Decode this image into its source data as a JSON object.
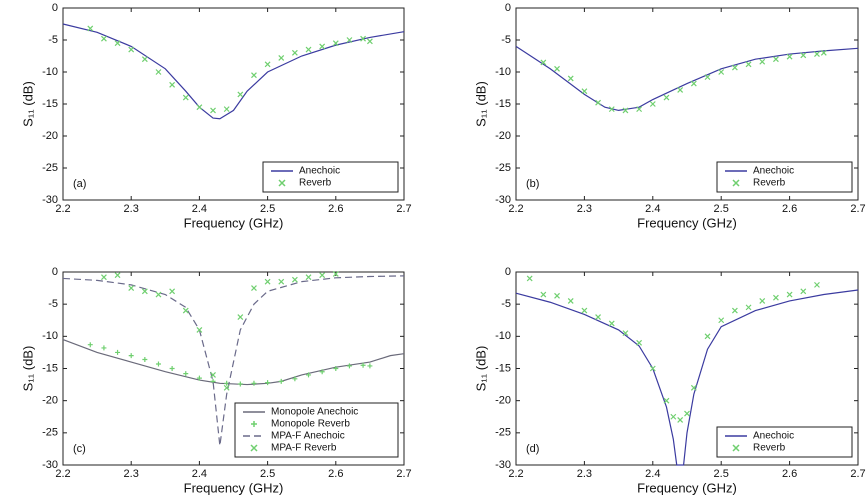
{
  "chart_data": [
    {
      "type": "line",
      "xlabel": "Frequency (GHz)",
      "ylabel": "S₁₁ (dB)",
      "annotation": "(a)",
      "xlim": [
        2.2,
        2.7
      ],
      "ylim": [
        -30,
        0
      ],
      "xticks": [
        2.2,
        2.3,
        2.4,
        2.5,
        2.6,
        2.7
      ],
      "yticks": [
        0,
        -5,
        -10,
        -15,
        -20,
        -25,
        -30
      ],
      "legend": "lower right",
      "series": [
        {
          "name": "Anechoic",
          "color": "#3b3ba0",
          "style": "solid",
          "x": [
            2.2,
            2.25,
            2.3,
            2.35,
            2.38,
            2.4,
            2.42,
            2.43,
            2.45,
            2.47,
            2.5,
            2.55,
            2.6,
            2.65,
            2.7
          ],
          "values": [
            -2.5,
            -3.8,
            -6,
            -9.5,
            -13,
            -15.5,
            -17.2,
            -17.3,
            -16,
            -13,
            -10,
            -7.5,
            -5.8,
            -4.6,
            -3.7
          ]
        },
        {
          "name": "Reverb",
          "color": "#6fcf6f",
          "style": "none",
          "marker": "x",
          "x": [
            2.24,
            2.26,
            2.28,
            2.3,
            2.32,
            2.34,
            2.36,
            2.38,
            2.4,
            2.42,
            2.44,
            2.46,
            2.48,
            2.5,
            2.52,
            2.54,
            2.56,
            2.58,
            2.6,
            2.62,
            2.64,
            2.65
          ],
          "values": [
            -3.2,
            -4.8,
            -5.5,
            -6.5,
            -8,
            -10,
            -12,
            -14,
            -15.5,
            -16,
            -15.8,
            -13.5,
            -10.5,
            -8.8,
            -7.8,
            -7,
            -6.5,
            -6,
            -5.5,
            -5,
            -4.8,
            -5.2
          ]
        }
      ]
    },
    {
      "type": "line",
      "xlabel": "Frequency (GHz)",
      "ylabel": "S₁₁ (dB)",
      "annotation": "(b)",
      "xlim": [
        2.2,
        2.7
      ],
      "ylim": [
        -30,
        0
      ],
      "xticks": [
        2.2,
        2.3,
        2.4,
        2.5,
        2.6,
        2.7
      ],
      "yticks": [
        0,
        -5,
        -10,
        -15,
        -20,
        -25,
        -30
      ],
      "legend": "lower right",
      "series": [
        {
          "name": "Anechoic",
          "color": "#3b3ba0",
          "style": "solid",
          "x": [
            2.2,
            2.25,
            2.3,
            2.33,
            2.35,
            2.38,
            2.4,
            2.45,
            2.5,
            2.55,
            2.6,
            2.65,
            2.7
          ],
          "values": [
            -6,
            -9.5,
            -13.5,
            -15.5,
            -16,
            -15.5,
            -14.3,
            -11.8,
            -9.5,
            -8,
            -7.2,
            -6.7,
            -6.3
          ]
        },
        {
          "name": "Reverb",
          "color": "#6fcf6f",
          "style": "none",
          "marker": "x",
          "x": [
            2.24,
            2.26,
            2.28,
            2.3,
            2.32,
            2.34,
            2.36,
            2.38,
            2.4,
            2.42,
            2.44,
            2.46,
            2.48,
            2.5,
            2.52,
            2.54,
            2.56,
            2.58,
            2.6,
            2.62,
            2.64,
            2.65
          ],
          "values": [
            -8.5,
            -9.5,
            -11,
            -13,
            -14.8,
            -15.8,
            -16,
            -15.8,
            -15,
            -14,
            -12.8,
            -11.8,
            -10.8,
            -10,
            -9.3,
            -8.8,
            -8.4,
            -8,
            -7.6,
            -7.4,
            -7.2,
            -7
          ]
        }
      ]
    },
    {
      "type": "line",
      "xlabel": "Frequency (GHz)",
      "ylabel": "S₁₁ (dB)",
      "annotation": "(c)",
      "xlim": [
        2.2,
        2.7
      ],
      "ylim": [
        -30,
        0
      ],
      "xticks": [
        2.2,
        2.3,
        2.4,
        2.5,
        2.6,
        2.7
      ],
      "yticks": [
        0,
        -5,
        -10,
        -15,
        -20,
        -25,
        -30
      ],
      "legend": "lower right",
      "series": [
        {
          "name": "Monopole Anechoic",
          "color": "#6a6a7a",
          "style": "solid",
          "x": [
            2.2,
            2.25,
            2.3,
            2.35,
            2.4,
            2.43,
            2.47,
            2.5,
            2.52,
            2.55,
            2.6,
            2.65,
            2.68,
            2.7
          ],
          "values": [
            -10.5,
            -12.5,
            -14,
            -15.5,
            -16.8,
            -17.3,
            -17.5,
            -17.3,
            -17,
            -16,
            -14.8,
            -14,
            -13,
            -12.7
          ]
        },
        {
          "name": "Monopole Reverb",
          "color": "#6fcf6f",
          "style": "none",
          "marker": "+",
          "x": [
            2.24,
            2.26,
            2.28,
            2.3,
            2.32,
            2.34,
            2.36,
            2.38,
            2.4,
            2.42,
            2.44,
            2.46,
            2.48,
            2.5,
            2.52,
            2.54,
            2.56,
            2.58,
            2.6,
            2.62,
            2.64,
            2.65
          ],
          "values": [
            -11.3,
            -11.8,
            -12.5,
            -13,
            -13.6,
            -14.3,
            -15,
            -15.8,
            -16.5,
            -17,
            -17.3,
            -17.4,
            -17.3,
            -17.2,
            -17,
            -16.6,
            -16,
            -15.5,
            -15,
            -14.6,
            -14.5,
            -14.6
          ]
        },
        {
          "name": "MPA-F Anechoic",
          "color": "#6a6a8a",
          "style": "dashed",
          "x": [
            2.2,
            2.25,
            2.3,
            2.35,
            2.38,
            2.4,
            2.42,
            2.43,
            2.44,
            2.46,
            2.48,
            2.5,
            2.55,
            2.6,
            2.65,
            2.7
          ],
          "values": [
            -1,
            -1.3,
            -2,
            -3.5,
            -5.5,
            -9,
            -17,
            -27,
            -19,
            -9,
            -5,
            -3,
            -1.5,
            -0.9,
            -0.7,
            -0.6
          ]
        },
        {
          "name": "MPA-F Reverb",
          "color": "#6fcf6f",
          "style": "none",
          "marker": "x",
          "x": [
            2.26,
            2.28,
            2.3,
            2.32,
            2.34,
            2.36,
            2.38,
            2.4,
            2.42,
            2.44,
            2.46,
            2.48,
            2.5,
            2.52,
            2.54,
            2.56,
            2.58,
            2.6
          ],
          "values": [
            -0.8,
            -0.5,
            -2.5,
            -3,
            -3.5,
            -3,
            -6,
            -9,
            -16,
            -18,
            -7,
            -2.5,
            -1.5,
            -1.5,
            -1.2,
            -0.8,
            -0.5,
            -0.3
          ]
        }
      ]
    },
    {
      "type": "line",
      "xlabel": "Frequency (GHz)",
      "ylabel": "S₁₁ (dB)",
      "annotation": "(d)",
      "xlim": [
        2.2,
        2.7
      ],
      "ylim": [
        -30,
        0
      ],
      "xticks": [
        2.2,
        2.3,
        2.4,
        2.5,
        2.6,
        2.7
      ],
      "yticks": [
        0,
        -5,
        -10,
        -15,
        -20,
        -25,
        -30
      ],
      "legend": "lower right",
      "series": [
        {
          "name": "Anechoic",
          "color": "#3b3ba0",
          "style": "solid",
          "x": [
            2.2,
            2.25,
            2.3,
            2.35,
            2.38,
            2.4,
            2.42,
            2.43,
            2.435,
            2.445,
            2.45,
            2.46,
            2.48,
            2.5,
            2.55,
            2.6,
            2.65,
            2.7
          ],
          "values": [
            -3.3,
            -4.7,
            -6.6,
            -9,
            -11.5,
            -15,
            -21,
            -26,
            -30,
            -30,
            -25,
            -19,
            -12,
            -8.5,
            -6,
            -4.5,
            -3.5,
            -2.8
          ]
        },
        {
          "name": "Reverb",
          "color": "#6fcf6f",
          "style": "none",
          "marker": "x",
          "x": [
            2.22,
            2.24,
            2.26,
            2.28,
            2.3,
            2.32,
            2.34,
            2.36,
            2.38,
            2.4,
            2.42,
            2.43,
            2.44,
            2.45,
            2.46,
            2.48,
            2.5,
            2.52,
            2.54,
            2.56,
            2.58,
            2.6,
            2.62,
            2.64
          ],
          "values": [
            -1,
            -3.5,
            -3.7,
            -4.5,
            -6,
            -7,
            -8,
            -9.5,
            -11,
            -15,
            -20,
            -22.5,
            -23,
            -22,
            -18,
            -10,
            -7.5,
            -6,
            -5.5,
            -4.5,
            -4,
            -3.5,
            -3,
            -2
          ]
        }
      ]
    }
  ]
}
